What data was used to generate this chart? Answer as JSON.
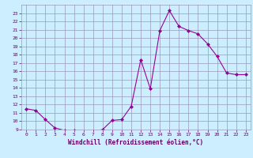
{
  "x": [
    0,
    1,
    2,
    3,
    4,
    5,
    6,
    7,
    8,
    9,
    10,
    11,
    12,
    13,
    14,
    15,
    16,
    17,
    18,
    19,
    20,
    21,
    22,
    23
  ],
  "y": [
    11.5,
    11.3,
    10.2,
    9.2,
    8.9,
    8.9,
    8.7,
    8.8,
    9.0,
    10.1,
    10.2,
    11.8,
    17.4,
    13.9,
    20.9,
    23.3,
    21.4,
    20.9,
    20.5,
    19.3,
    17.8,
    15.8,
    15.6,
    15.6
  ],
  "line_color": "#990099",
  "marker": "D",
  "marker_size": 2.0,
  "bg_color": "#cceeff",
  "grid_color": "#9999bb",
  "xlabel": "Windchill (Refroidissement éolien,°C)",
  "xlabel_color": "#660066",
  "tick_color": "#660066",
  "ylim": [
    9,
    24
  ],
  "xlim": [
    -0.5,
    23.5
  ],
  "yticks": [
    9,
    10,
    11,
    12,
    13,
    14,
    15,
    16,
    17,
    18,
    19,
    20,
    21,
    22,
    23
  ],
  "xticks": [
    0,
    1,
    2,
    3,
    4,
    5,
    6,
    7,
    8,
    9,
    10,
    11,
    12,
    13,
    14,
    15,
    16,
    17,
    18,
    19,
    20,
    21,
    22,
    23
  ],
  "figsize": [
    3.2,
    2.0
  ],
  "dpi": 100
}
